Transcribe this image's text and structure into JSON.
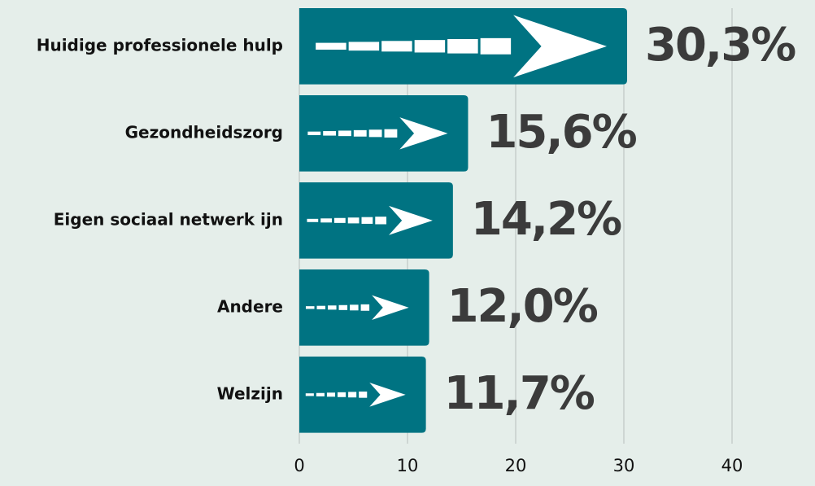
{
  "chart_data": {
    "type": "bar",
    "orientation": "horizontal",
    "categories": [
      "Huidige professionele hulp",
      "Gezondheidszorg",
      "Eigen sociaal netwerk ijn",
      "Andere",
      "Welzijn"
    ],
    "values": [
      30.3,
      15.6,
      14.2,
      12.0,
      11.7
    ],
    "value_labels": [
      "30,3%",
      "15,6%",
      "14,2%",
      "12,0%",
      "11,7%"
    ],
    "color": "#007382",
    "xlim": [
      0,
      40
    ],
    "xticks": [
      0,
      10,
      20,
      30,
      40
    ],
    "grid": true
  }
}
